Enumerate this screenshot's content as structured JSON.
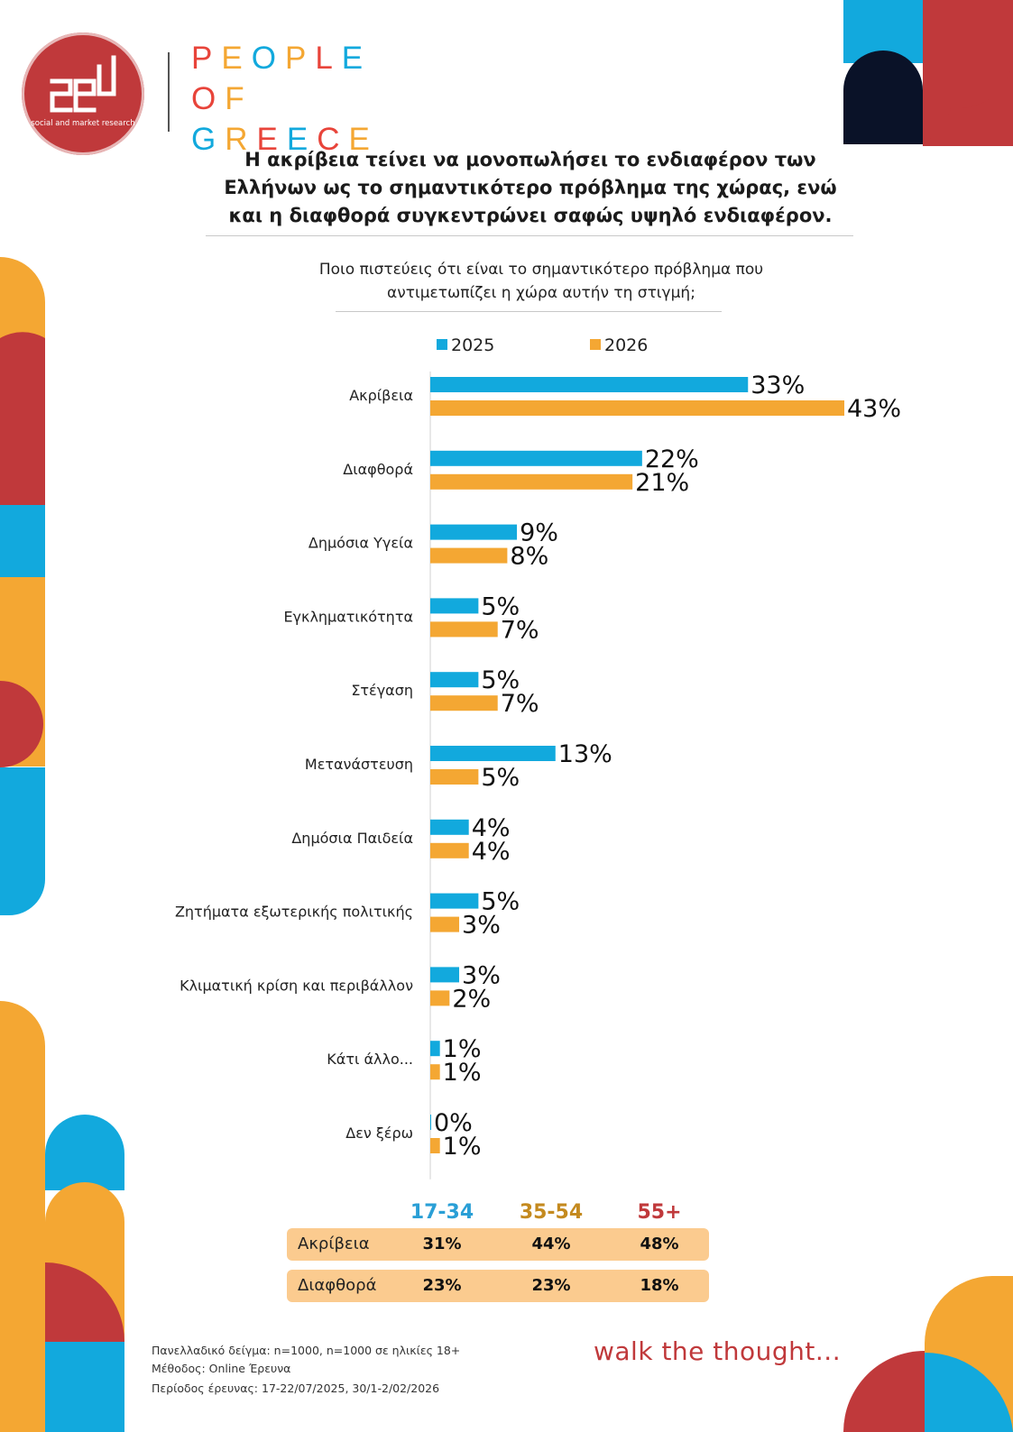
{
  "logo": {
    "tagline": "social and market research"
  },
  "brand": {
    "lines": [
      "PEOPLE",
      "OF",
      "GREECE"
    ],
    "letter_colors": [
      "#e8443a",
      "#f4a733",
      "#12a9dd",
      "#f4a733",
      "#e8443a",
      "#12a9dd"
    ]
  },
  "title": "Η ακρίβεια τείνει να μονοπωλήσει το ενδιαφέρον των Ελλήνων ως το σημαντικότερο πρόβλημα της χώρας, ενώ και η διαφθορά συγκεντρώνει σαφώς υψηλό ενδιαφέρον.",
  "question": "Ποιο πιστεύεις ότι είναι το σημαντικότερο πρόβλημα που αντιμετωπίζει η χώρα αυτήν τη στιγμή;",
  "colors": {
    "blue": "#12a9dd",
    "orange": "#f4a733",
    "red": "#c0393b",
    "navy": "#0a1228",
    "row_bg": "#fbcb8f"
  },
  "chart_data": {
    "type": "bar",
    "orientation": "horizontal",
    "title": "Ποιο πιστεύεις ότι είναι το σημαντικότερο πρόβλημα που αντιμετωπίζει η χώρα αυτήν τη στιγμή;",
    "categories": [
      "Ακρίβεια",
      "Διαφθορά",
      "Δημόσια Υγεία",
      "Εγκληματικότητα",
      "Στέγαση",
      "Μετανάστευση",
      "Δημόσια Παιδεία",
      "Ζητήματα εξωτερικής πολιτικής",
      "Κλιματική κρίση και περιβάλλον",
      "Κάτι άλλο...",
      "Δεν ξέρω"
    ],
    "series": [
      {
        "name": "2025",
        "color": "#12a9dd",
        "values": [
          33,
          22,
          9,
          5,
          5,
          13,
          4,
          5,
          3,
          1,
          0
        ]
      },
      {
        "name": "2026",
        "color": "#f4a733",
        "values": [
          43,
          21,
          8,
          7,
          7,
          5,
          4,
          3,
          2,
          1,
          1
        ]
      }
    ],
    "value_suffix": "%",
    "xlim": [
      0,
      43
    ],
    "legend": "top",
    "grid": false
  },
  "age_table": {
    "headers": [
      "17-34",
      "35-54",
      "55+"
    ],
    "header_colors": [
      "#2a9fd6",
      "#c48a1f",
      "#c0393b"
    ],
    "rows": [
      {
        "label": "Ακρίβεια",
        "values": [
          "31%",
          "44%",
          "48%"
        ]
      },
      {
        "label": "Διαφθορά",
        "values": [
          "23%",
          "23%",
          "18%"
        ]
      }
    ]
  },
  "footnotes": [
    "Πανελλαδικό δείγμα: n=1000, n=1000 σε ηλικίες 18+",
    "Μέθοδος: Online Έρευνα",
    "Περίοδος έρευνας: 17-22/07/2025, 30/1-2/02/2026"
  ],
  "tagline": "walk the thought..."
}
